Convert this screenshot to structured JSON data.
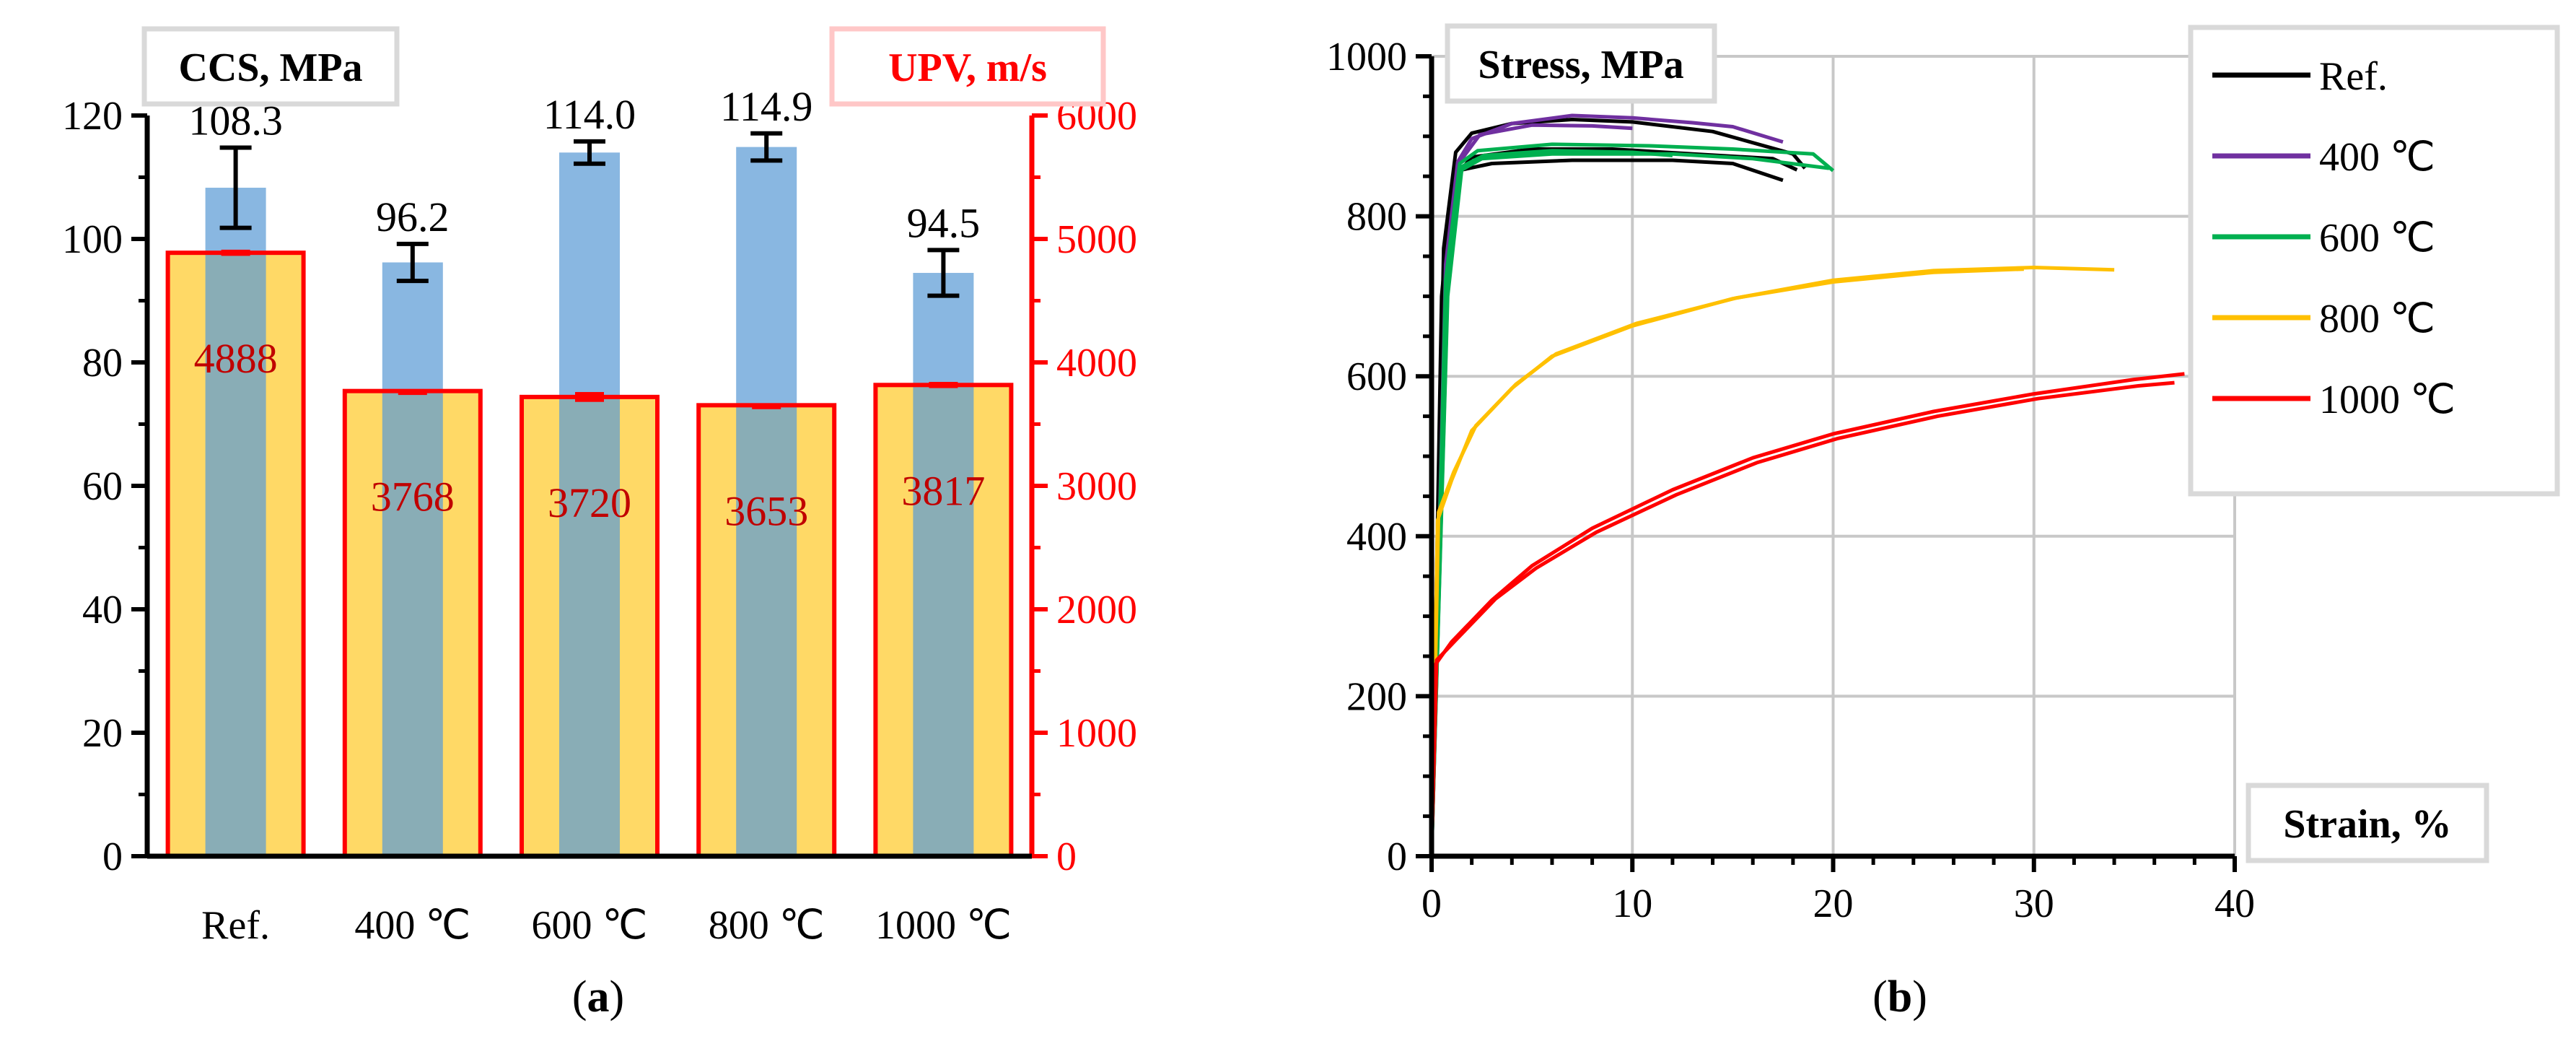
{
  "colors": {
    "ccs_bar": "#5b9bd5",
    "upv_bar_fill": "#ffd966",
    "upv_bar_edge": "#ff0000",
    "upv_label": "#c00000",
    "axis_red": "#ff0000",
    "grid": "#c8c8c8"
  },
  "chart_data": [
    {
      "type": "bar",
      "panel_label": "(a)",
      "panel_letter": "a",
      "categories": [
        "Ref.",
        "400 ℃",
        "600 ℃",
        "800 ℃",
        "1000 ℃"
      ],
      "series": [
        {
          "name": "CCS, MPa",
          "axis": "left",
          "values": [
            108.3,
            96.2,
            114.0,
            114.9,
            94.5
          ],
          "labels": [
            "108.3",
            "96.2",
            "114.0",
            "114.9",
            "94.5"
          ],
          "error": [
            6.5,
            3.0,
            1.8,
            2.2,
            3.7
          ]
        },
        {
          "name": "UPV, m/s",
          "axis": "right",
          "values": [
            4888,
            3768,
            3720,
            3653,
            3817
          ],
          "labels": [
            "4888",
            "3768",
            "3720",
            "3653",
            "3817"
          ],
          "error": [
            25,
            15,
            40,
            15,
            25
          ]
        }
      ],
      "y_left": {
        "label": "CCS, MPa",
        "lim": [
          0,
          120
        ],
        "ticks": [
          "0",
          "20",
          "40",
          "60",
          "80",
          "100",
          "120"
        ]
      },
      "y_right": {
        "label": "UPV, m/s",
        "lim": [
          0,
          6000
        ],
        "ticks": [
          "0",
          "1000",
          "2000",
          "3000",
          "4000",
          "5000",
          "6000"
        ]
      }
    },
    {
      "type": "line",
      "panel_label": "(b)",
      "panel_letter": "b",
      "xlabel": "Strain, %",
      "ylabel": "Stress, MPa",
      "xlim": [
        0,
        40
      ],
      "ylim": [
        0,
        1000
      ],
      "x_ticks": [
        "0",
        "10",
        "20",
        "30",
        "40"
      ],
      "y_ticks": [
        "0",
        "200",
        "400",
        "600",
        "800",
        "1000"
      ],
      "grid": true,
      "legend_position": "top-right",
      "series": [
        {
          "name": "Ref.",
          "color": "#000000",
          "curves": [
            [
              [
                0,
                0
              ],
              [
                0.5,
                700
              ],
              [
                1,
                835
              ],
              [
                1.5,
                858
              ],
              [
                3,
                866
              ],
              [
                7,
                870
              ],
              [
                12,
                870
              ],
              [
                15,
                866
              ],
              [
                17.5,
                845
              ]
            ],
            [
              [
                0,
                0
              ],
              [
                0.6,
                760
              ],
              [
                1.2,
                880
              ],
              [
                2,
                904
              ],
              [
                4,
                916
              ],
              [
                7,
                921
              ],
              [
                10,
                918
              ],
              [
                14,
                906
              ],
              [
                18,
                878
              ],
              [
                18.6,
                860
              ]
            ],
            [
              [
                0,
                0
              ],
              [
                0.6,
                720
              ],
              [
                1.2,
                850
              ],
              [
                2,
                874
              ],
              [
                5,
                884
              ],
              [
                9,
                884
              ],
              [
                13,
                878
              ],
              [
                17,
                872
              ],
              [
                18.2,
                858
              ]
            ]
          ]
        },
        {
          "name": "400 ℃",
          "color": "#7030a0",
          "curves": [
            [
              [
                0,
                0
              ],
              [
                0.7,
                740
              ],
              [
                1.3,
                868
              ],
              [
                2,
                897
              ],
              [
                4,
                916
              ],
              [
                7,
                926
              ],
              [
                10,
                923
              ],
              [
                13,
                917
              ],
              [
                15,
                912
              ],
              [
                17.5,
                893
              ]
            ],
            [
              [
                0,
                0
              ],
              [
                0.8,
                720
              ],
              [
                1.4,
                868
              ],
              [
                2.4,
                902
              ],
              [
                5,
                914
              ],
              [
                8,
                913
              ],
              [
                10,
                910
              ]
            ]
          ]
        },
        {
          "name": "600 ℃",
          "color": "#00b050",
          "curves": [
            [
              [
                0,
                0
              ],
              [
                0.8,
                700
              ],
              [
                1.5,
                858
              ],
              [
                2.5,
                872
              ],
              [
                6,
                878
              ],
              [
                12,
                878
              ],
              [
                16,
                872
              ],
              [
                19.8,
                860
              ]
            ],
            [
              [
                0,
                0
              ],
              [
                0.7,
                720
              ],
              [
                1.4,
                866
              ],
              [
                2.3,
                882
              ],
              [
                6,
                890
              ],
              [
                11,
                888
              ],
              [
                15,
                884
              ],
              [
                19,
                878
              ],
              [
                20,
                857
              ]
            ],
            [
              [
                0,
                0
              ],
              [
                0.8,
                710
              ],
              [
                1.5,
                862
              ],
              [
                2.6,
                876
              ],
              [
                6,
                882
              ],
              [
                10,
                880
              ],
              [
                12,
                876
              ]
            ]
          ]
        },
        {
          "name": "800 ℃",
          "color": "#ffc000",
          "curves": [
            [
              [
                0,
                0
              ],
              [
                0.3,
                420
              ],
              [
                1,
                470
              ],
              [
                2,
                532
              ],
              [
                4,
                585
              ],
              [
                6,
                625
              ],
              [
                10,
                663
              ],
              [
                15,
                697
              ],
              [
                20,
                720
              ],
              [
                25,
                732
              ],
              [
                30,
                736
              ],
              [
                34,
                733
              ]
            ],
            [
              [
                0,
                0
              ],
              [
                0.35,
                430
              ],
              [
                1.1,
                480
              ],
              [
                2.2,
                538
              ],
              [
                4.2,
                590
              ],
              [
                6.2,
                628
              ],
              [
                10.2,
                666
              ],
              [
                15.2,
                698
              ],
              [
                20,
                718
              ],
              [
                25,
                730
              ],
              [
                29.5,
                734
              ]
            ]
          ]
        },
        {
          "name": "1000 ℃",
          "color": "#ff0000",
          "curves": [
            [
              [
                0,
                0
              ],
              [
                0.2,
                240
              ],
              [
                1,
                268
              ],
              [
                3,
                320
              ],
              [
                5,
                363
              ],
              [
                8,
                410
              ],
              [
                12,
                458
              ],
              [
                16,
                498
              ],
              [
                20,
                528
              ],
              [
                25,
                556
              ],
              [
                30,
                578
              ],
              [
                35,
                596
              ],
              [
                37.5,
                603
              ]
            ],
            [
              [
                0,
                0
              ],
              [
                0.25,
                245
              ],
              [
                1.2,
                270
              ],
              [
                3.2,
                322
              ],
              [
                5.2,
                360
              ],
              [
                8.2,
                405
              ],
              [
                12.2,
                452
              ],
              [
                16.2,
                492
              ],
              [
                20.2,
                522
              ],
              [
                25.2,
                550
              ],
              [
                30.2,
                572
              ],
              [
                35.2,
                588
              ],
              [
                37,
                592
              ]
            ]
          ]
        }
      ]
    }
  ]
}
